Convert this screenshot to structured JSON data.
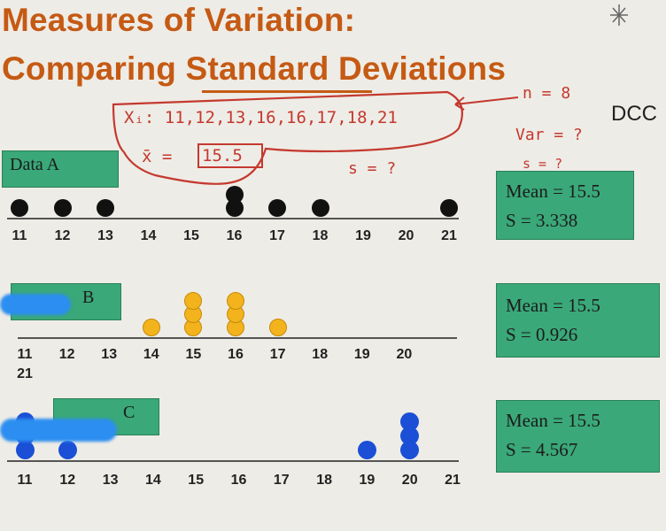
{
  "title_line1": "Measures of Variation:",
  "title_line2": "Comparing Standard Deviations",
  "corner_text": "DCC",
  "handwriting": {
    "data": "Xᵢ: 11,12,13,16,16,17,18,21",
    "xbar": "x̄ = ",
    "xbar_val": "15.5",
    "n": "n = 8",
    "var": "Var = ?",
    "s1": "s = ?",
    "s2": "s = ?"
  },
  "axis_ticks": [
    "11",
    "12",
    "13",
    "14",
    "15",
    "16",
    "17",
    "18",
    "19",
    "20",
    "21"
  ],
  "panels": {
    "A": {
      "label": "Data A",
      "mean": "Mean = 15.5",
      "s": "S = 3.338",
      "points": [
        11,
        12,
        13,
        16,
        16,
        17,
        18,
        21
      ],
      "color": "#111111"
    },
    "B": {
      "label": "B",
      "mean": "Mean = 15.5",
      "s": "S = 0.926",
      "points": [
        14,
        15,
        15,
        15,
        16,
        16,
        16,
        17
      ],
      "color": "#f2b31d"
    },
    "C": {
      "label": "C",
      "mean": "Mean = 15.5",
      "s": "S = 4.567",
      "points": [
        11,
        11,
        11,
        12,
        19,
        20,
        20,
        20
      ],
      "color": "#1a4fd6"
    }
  },
  "icons": [
    "sparkle-icon"
  ]
}
